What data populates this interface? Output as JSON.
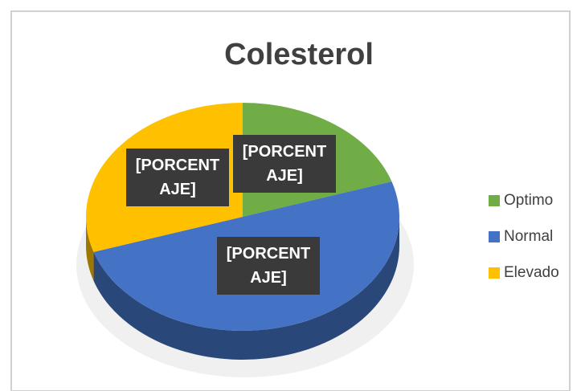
{
  "chart_data": {
    "type": "pie",
    "title": "Colesterol",
    "categories": [
      "Optimo",
      "Normal",
      "Elevado"
    ],
    "values": [
      20,
      50,
      30
    ],
    "value_labels": [
      "[PORCENTAJE]",
      "[PORCENTAJE]",
      "[PORCENTAJE]"
    ],
    "colors": [
      "#70ad47",
      "#4472c4",
      "#ffc000"
    ],
    "legend": "right"
  }
}
